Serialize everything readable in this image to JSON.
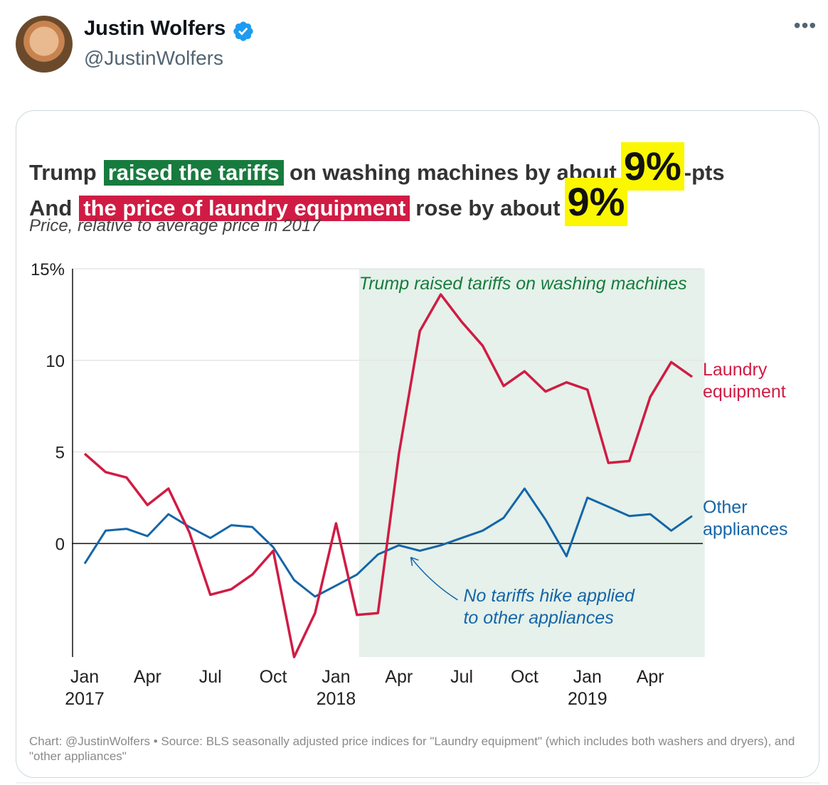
{
  "tweet": {
    "author_name": "Justin Wolfers",
    "author_handle": "@JustinWolfers",
    "more_label": "•••"
  },
  "colors": {
    "laundry": "#d01c44",
    "other": "#1565a8",
    "tariff_band": "#e5f1ea",
    "tariff_label": "#187b3e",
    "highlight": "#fbf700"
  },
  "headline": {
    "line1": {
      "prefix": "Trump",
      "green": "raised the tariffs",
      "middle": "on washing machines by about",
      "big": "9%",
      "suffix": "-pts"
    },
    "line2": {
      "prefix": "And",
      "red": "the price of laundry equipment",
      "middle": "rose by about",
      "big": "9%"
    }
  },
  "subtitle": "Price, relative to average price in 2017",
  "footer": "Chart: @JustinWolfers • Source: BLS seasonally adjusted price indices for \"Laundry equipment\" (which includes both washers and dryers), and \"other appliances\"",
  "chart_data": {
    "type": "line",
    "title": "Trump raised the tariffs on washing machines by about 9%-pts / And the price of laundry equipment rose by about 9%",
    "subtitle": "Price, relative to average price in 2017",
    "ylabel": "Price, relative to average price in 2017",
    "ylim": [
      -6.2,
      15
    ],
    "y_ticks": [
      {
        "value": 15,
        "label": "15%"
      },
      {
        "value": 10,
        "label": "10"
      },
      {
        "value": 5,
        "label": "5"
      },
      {
        "value": 0,
        "label": "0"
      }
    ],
    "x_ticks": [
      {
        "index": 0,
        "month": "Jan",
        "year": "2017"
      },
      {
        "index": 3,
        "month": "Apr",
        "year": ""
      },
      {
        "index": 6,
        "month": "Jul",
        "year": ""
      },
      {
        "index": 9,
        "month": "Oct",
        "year": ""
      },
      {
        "index": 12,
        "month": "Jan",
        "year": "2018"
      },
      {
        "index": 15,
        "month": "Apr",
        "year": ""
      },
      {
        "index": 18,
        "month": "Jul",
        "year": ""
      },
      {
        "index": 21,
        "month": "Oct",
        "year": ""
      },
      {
        "index": 24,
        "month": "Jan",
        "year": "2019"
      },
      {
        "index": 27,
        "month": "Apr",
        "year": ""
      }
    ],
    "x_count": 30,
    "shaded_region": {
      "start": 13.1,
      "end": 29.6,
      "label": "Trump raised tariffs on washing machines"
    },
    "series": [
      {
        "name": "Laundry equipment",
        "label_lines": [
          "Laundry",
          "equipment"
        ],
        "values": [
          4.9,
          3.9,
          3.6,
          2.1,
          3.0,
          0.6,
          -2.8,
          -2.5,
          -1.7,
          -0.4,
          -6.2,
          -3.8,
          1.1,
          -3.9,
          -3.8,
          4.9,
          11.6,
          13.6,
          12.1,
          10.8,
          8.6,
          9.4,
          8.3,
          8.8,
          8.4,
          4.4,
          4.5,
          8.0,
          9.9,
          9.1
        ]
      },
      {
        "name": "Other appliances",
        "label_lines": [
          "Other",
          "appliances"
        ],
        "values": [
          -1.1,
          0.7,
          0.8,
          0.4,
          1.6,
          0.9,
          0.3,
          1.0,
          0.9,
          -0.2,
          -2.0,
          -2.9,
          -2.3,
          -1.7,
          -0.6,
          -0.1,
          -0.4,
          -0.1,
          0.3,
          0.7,
          1.4,
          3.0,
          1.3,
          -0.7,
          2.5,
          2.0,
          1.5,
          1.6,
          0.7,
          1.5
        ]
      }
    ],
    "annotation": {
      "lines": [
        "No tariffs hike applied",
        "to other appliances"
      ],
      "points_to_index": 15.5
    }
  }
}
